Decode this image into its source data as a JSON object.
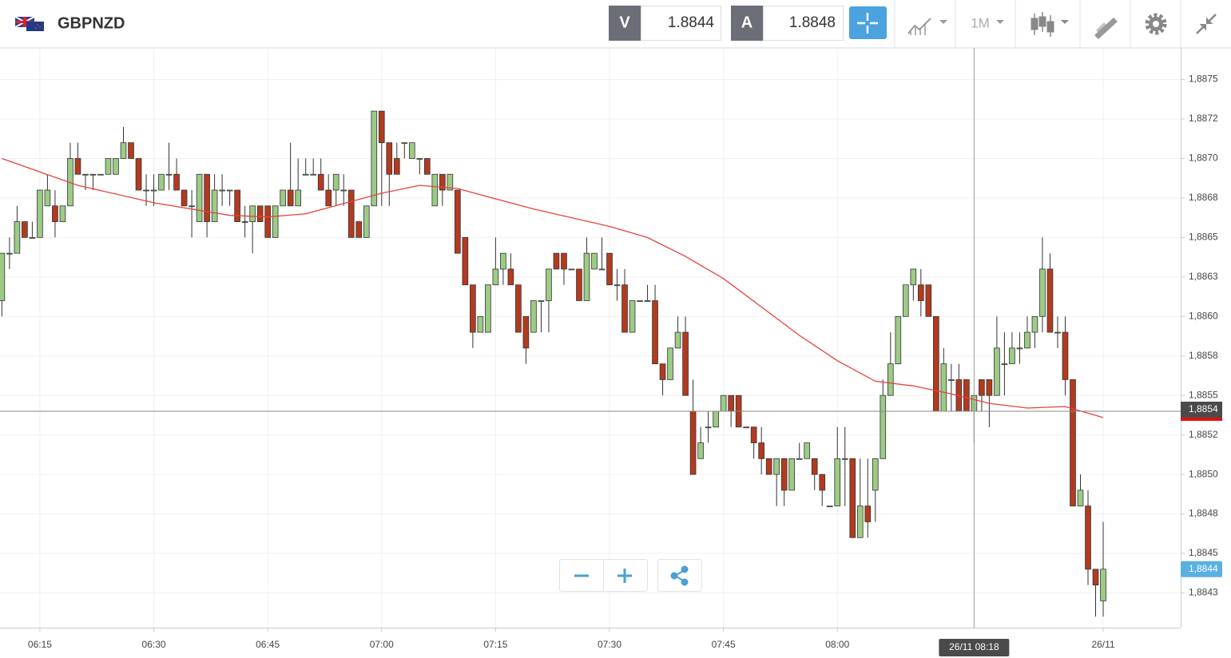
{
  "header": {
    "symbol": "GBPNZD",
    "sell_label": "V",
    "sell_price": "1.8844",
    "buy_label": "A",
    "buy_price": "1.8848",
    "timeframe": "1M"
  },
  "chart_data": {
    "type": "candlestick",
    "up_color": "#9ccb86",
    "down_color": "#b33a1f",
    "ma_color": "#e8413b",
    "grid": true,
    "xlim": [
      -0.25,
      155.2
    ],
    "ylim": [
      1.88403,
      1.8877
    ],
    "xticks": [
      {
        "value": 5,
        "label": "06:15"
      },
      {
        "value": 20,
        "label": "06:30"
      },
      {
        "value": 35,
        "label": "06:45"
      },
      {
        "value": 50,
        "label": "07:00"
      },
      {
        "value": 65,
        "label": "07:15"
      },
      {
        "value": 80,
        "label": "07:30"
      },
      {
        "value": 95,
        "label": "07:45"
      },
      {
        "value": 110,
        "label": "08:00"
      },
      {
        "value": 145,
        "label": "26/11"
      }
    ],
    "yticks": [
      {
        "value": 1.8875,
        "label": "1,8875"
      },
      {
        "value": 1.88725,
        "label": "1,8872"
      },
      {
        "value": 1.887,
        "label": "1,8870"
      },
      {
        "value": 1.88675,
        "label": "1,8868"
      },
      {
        "value": 1.8865,
        "label": "1,8865"
      },
      {
        "value": 1.88625,
        "label": "1,8863"
      },
      {
        "value": 1.886,
        "label": "1,8860"
      },
      {
        "value": 1.88575,
        "label": "1,8858"
      },
      {
        "value": 1.8855,
        "label": "1,8855"
      },
      {
        "value": 1.88525,
        "label": "1,8852"
      },
      {
        "value": 1.885,
        "label": "1,8850"
      },
      {
        "value": 1.88475,
        "label": "1,8848"
      },
      {
        "value": 1.8845,
        "label": "1,8845"
      },
      {
        "value": 1.88425,
        "label": "1,8843"
      }
    ],
    "candles": [
      [
        1.8861,
        1.8864,
        1.886,
        1.8864
      ],
      [
        1.8864,
        1.8865,
        1.8863,
        1.8864
      ],
      [
        1.8864,
        1.8867,
        1.8864,
        1.8866
      ],
      [
        1.8866,
        1.8866,
        1.8865,
        1.8865
      ],
      [
        1.8865,
        1.8866,
        1.8865,
        1.8865
      ],
      [
        1.8865,
        1.8868,
        1.8865,
        1.8868
      ],
      [
        1.8867,
        1.8869,
        1.8867,
        1.8868
      ],
      [
        1.8867,
        1.8868,
        1.8865,
        1.8866
      ],
      [
        1.8866,
        1.8867,
        1.8866,
        1.8867
      ],
      [
        1.8867,
        1.8871,
        1.8867,
        1.887
      ],
      [
        1.887,
        1.8871,
        1.8869,
        1.8869
      ],
      [
        1.8869,
        1.8869,
        1.8868,
        1.8869
      ],
      [
        1.8869,
        1.8869,
        1.8868,
        1.8869
      ],
      [
        1.8869,
        1.8869,
        1.8869,
        1.8869
      ],
      [
        1.8869,
        1.887,
        1.8869,
        1.887
      ],
      [
        1.8869,
        1.887,
        1.8869,
        1.887
      ],
      [
        1.887,
        1.8872,
        1.887,
        1.8871
      ],
      [
        1.8871,
        1.8871,
        1.887,
        1.887
      ],
      [
        1.887,
        1.887,
        1.8868,
        1.8868
      ],
      [
        1.8868,
        1.8869,
        1.8867,
        1.8868
      ],
      [
        1.8868,
        1.8869,
        1.8867,
        1.8868
      ],
      [
        1.8868,
        1.8869,
        1.8868,
        1.8869
      ],
      [
        1.8869,
        1.8871,
        1.8868,
        1.8869
      ],
      [
        1.8869,
        1.887,
        1.8868,
        1.8868
      ],
      [
        1.8868,
        1.8868,
        1.8867,
        1.8867
      ],
      [
        1.8867,
        1.8868,
        1.8865,
        1.8867
      ],
      [
        1.8866,
        1.8869,
        1.8866,
        1.8869
      ],
      [
        1.8869,
        1.8869,
        1.8865,
        1.8866
      ],
      [
        1.8866,
        1.8869,
        1.8866,
        1.8868
      ],
      [
        1.8868,
        1.8869,
        1.8867,
        1.8868
      ],
      [
        1.8868,
        1.8868,
        1.8867,
        1.8868
      ],
      [
        1.8868,
        1.8868,
        1.8866,
        1.8866
      ],
      [
        1.8866,
        1.8867,
        1.8865,
        1.8866
      ],
      [
        1.8866,
        1.8867,
        1.8864,
        1.8867
      ],
      [
        1.8867,
        1.8867,
        1.8866,
        1.8866
      ],
      [
        1.8867,
        1.8867,
        1.8865,
        1.8865
      ],
      [
        1.8865,
        1.8867,
        1.8865,
        1.8867
      ],
      [
        1.8867,
        1.8868,
        1.8867,
        1.8868
      ],
      [
        1.8868,
        1.8871,
        1.8867,
        1.8867
      ],
      [
        1.8867,
        1.887,
        1.8867,
        1.8868
      ],
      [
        1.8869,
        1.887,
        1.8869,
        1.8869
      ],
      [
        1.8869,
        1.887,
        1.8869,
        1.8869
      ],
      [
        1.8869,
        1.887,
        1.8868,
        1.8868
      ],
      [
        1.8868,
        1.8869,
        1.8867,
        1.8867
      ],
      [
        1.8868,
        1.8869,
        1.8867,
        1.8869
      ],
      [
        1.8868,
        1.8869,
        1.8867,
        1.8868
      ],
      [
        1.8868,
        1.8868,
        1.8865,
        1.8865
      ],
      [
        1.8866,
        1.8866,
        1.8865,
        1.8865
      ],
      [
        1.8865,
        1.8867,
        1.8865,
        1.8867
      ],
      [
        1.8867,
        1.8873,
        1.8867,
        1.8873
      ],
      [
        1.8873,
        1.8873,
        1.8867,
        1.8871
      ],
      [
        1.8871,
        1.8871,
        1.8867,
        1.8869
      ],
      [
        1.887,
        1.8871,
        1.8869,
        1.8869
      ],
      [
        1.8871,
        1.8871,
        1.887,
        1.8871
      ],
      [
        1.887,
        1.8871,
        1.887,
        1.8871
      ],
      [
        1.887,
        1.887,
        1.8869,
        1.887
      ],
      [
        1.887,
        1.887,
        1.8869,
        1.8869
      ],
      [
        1.8867,
        1.8869,
        1.8867,
        1.8869
      ],
      [
        1.8869,
        1.8869,
        1.8867,
        1.8868
      ],
      [
        1.8868,
        1.8869,
        1.8868,
        1.8869
      ],
      [
        1.8868,
        1.8868,
        1.8864,
        1.8864
      ],
      [
        1.8865,
        1.8865,
        1.8862,
        1.8862
      ],
      [
        1.8862,
        1.8862,
        1.8858,
        1.8859
      ],
      [
        1.8859,
        1.886,
        1.8859,
        1.886
      ],
      [
        1.8859,
        1.8862,
        1.8859,
        1.8862
      ],
      [
        1.8862,
        1.8865,
        1.8862,
        1.8863
      ],
      [
        1.8863,
        1.8864,
        1.8862,
        1.8864
      ],
      [
        1.8863,
        1.8864,
        1.8862,
        1.8862
      ],
      [
        1.8862,
        1.8862,
        1.8859,
        1.8859
      ],
      [
        1.886,
        1.886,
        1.8857,
        1.8858
      ],
      [
        1.8859,
        1.8861,
        1.8859,
        1.8861
      ],
      [
        1.8861,
        1.8861,
        1.8859,
        1.8861
      ],
      [
        1.8861,
        1.8863,
        1.8859,
        1.8863
      ],
      [
        1.8864,
        1.8864,
        1.8863,
        1.8863
      ],
      [
        1.8864,
        1.8864,
        1.8862,
        1.8863
      ],
      [
        1.8863,
        1.8863,
        1.8863,
        1.8863
      ],
      [
        1.8863,
        1.8863,
        1.8861,
        1.8861
      ],
      [
        1.8861,
        1.8865,
        1.8861,
        1.8864
      ],
      [
        1.8863,
        1.8864,
        1.8863,
        1.8864
      ],
      [
        1.8863,
        1.8865,
        1.8863,
        1.8863
      ],
      [
        1.8864,
        1.8864,
        1.8862,
        1.8862
      ],
      [
        1.8862,
        1.8863,
        1.8861,
        1.8862
      ],
      [
        1.8862,
        1.8863,
        1.8859,
        1.8859
      ],
      [
        1.8859,
        1.8861,
        1.8859,
        1.8861
      ],
      [
        1.8861,
        1.8861,
        1.8861,
        1.8861
      ],
      [
        1.8861,
        1.8862,
        1.8861,
        1.8861
      ],
      [
        1.8861,
        1.8862,
        1.8857,
        1.8857
      ],
      [
        1.8857,
        1.8857,
        1.8855,
        1.8856
      ],
      [
        1.8856,
        1.8858,
        1.8856,
        1.8858
      ],
      [
        1.8858,
        1.886,
        1.8858,
        1.8859
      ],
      [
        1.8859,
        1.886,
        1.8855,
        1.8855
      ],
      [
        1.8854,
        1.8856,
        1.885,
        1.885
      ],
      [
        1.8851,
        1.8853,
        1.8851,
        1.8852
      ],
      [
        1.8853,
        1.8854,
        1.8852,
        1.8853
      ],
      [
        1.8853,
        1.8854,
        1.8853,
        1.8854
      ],
      [
        1.8854,
        1.8855,
        1.8854,
        1.8855
      ],
      [
        1.8855,
        1.8855,
        1.8853,
        1.8854
      ],
      [
        1.8855,
        1.8855,
        1.8853,
        1.8853
      ],
      [
        1.8853,
        1.8853,
        1.8853,
        1.8853
      ],
      [
        1.8853,
        1.8853,
        1.8851,
        1.8852
      ],
      [
        1.8852,
        1.8853,
        1.885,
        1.8851
      ],
      [
        1.8851,
        1.8851,
        1.885,
        1.885
      ],
      [
        1.885,
        1.8851,
        1.8848,
        1.8851
      ],
      [
        1.8851,
        1.8851,
        1.8848,
        1.8849
      ],
      [
        1.8849,
        1.8851,
        1.8849,
        1.8851
      ],
      [
        1.8851,
        1.8852,
        1.8851,
        1.8851
      ],
      [
        1.8851,
        1.8852,
        1.8851,
        1.8852
      ],
      [
        1.8851,
        1.8851,
        1.8849,
        1.885
      ],
      [
        1.885,
        1.885,
        1.8848,
        1.8849
      ],
      [
        1.8848,
        1.8848,
        1.8848,
        1.8848
      ],
      [
        1.8848,
        1.8853,
        1.8848,
        1.8851
      ],
      [
        1.8851,
        1.8853,
        1.8848,
        1.8851
      ],
      [
        1.8851,
        1.8851,
        1.8846,
        1.8846
      ],
      [
        1.8846,
        1.8851,
        1.8846,
        1.8848
      ],
      [
        1.8848,
        1.8851,
        1.8846,
        1.8847
      ],
      [
        1.8849,
        1.8851,
        1.8847,
        1.8851
      ],
      [
        1.8851,
        1.8856,
        1.8851,
        1.8855
      ],
      [
        1.8855,
        1.8859,
        1.8855,
        1.8857
      ],
      [
        1.8857,
        1.886,
        1.8857,
        1.886
      ],
      [
        1.886,
        1.8862,
        1.886,
        1.8862
      ],
      [
        1.8862,
        1.8863,
        1.8861,
        1.8863
      ],
      [
        1.8862,
        1.8863,
        1.886,
        1.8861
      ],
      [
        1.8862,
        1.8862,
        1.886,
        1.886
      ],
      [
        1.886,
        1.886,
        1.8854,
        1.8854
      ],
      [
        1.8854,
        1.8858,
        1.8854,
        1.8857
      ],
      [
        1.8856,
        1.8857,
        1.8854,
        1.8856
      ],
      [
        1.8856,
        1.8857,
        1.8854,
        1.8854
      ],
      [
        1.8856,
        1.8856,
        1.8854,
        1.8854
      ],
      [
        1.8854,
        1.8855,
        1.8852,
        1.8855
      ],
      [
        1.8856,
        1.8856,
        1.8854,
        1.8855
      ],
      [
        1.8856,
        1.8856,
        1.8853,
        1.8855
      ],
      [
        1.8855,
        1.886,
        1.8855,
        1.8858
      ],
      [
        1.8857,
        1.8859,
        1.8855,
        1.8857
      ],
      [
        1.8857,
        1.8859,
        1.8857,
        1.8858
      ],
      [
        1.8858,
        1.8859,
        1.8857,
        1.8858
      ],
      [
        1.8858,
        1.886,
        1.8858,
        1.8859
      ],
      [
        1.8859,
        1.886,
        1.8858,
        1.886
      ],
      [
        1.886,
        1.8865,
        1.8859,
        1.8863
      ],
      [
        1.8863,
        1.8864,
        1.8859,
        1.8859
      ],
      [
        1.8859,
        1.886,
        1.8858,
        1.8859
      ],
      [
        1.8859,
        1.886,
        1.8855,
        1.8856
      ],
      [
        1.8856,
        1.8856,
        1.8848,
        1.8848
      ],
      [
        1.8848,
        1.885,
        1.8848,
        1.8849
      ],
      [
        1.8848,
        1.8849,
        1.8843,
        1.8844
      ],
      [
        1.8844,
        1.8844,
        1.8841,
        1.8843
      ],
      [
        1.8842,
        1.8847,
        1.8841,
        1.8844
      ]
    ],
    "ma": {
      "x": [
        0,
        10,
        20,
        30,
        35,
        40,
        50,
        55,
        60,
        70,
        80,
        85,
        90,
        95,
        100,
        105,
        110,
        115,
        120,
        125,
        130,
        135,
        140,
        145
      ],
      "values": [
        1.887,
        1.88683,
        1.88672,
        1.88664,
        1.88663,
        1.88665,
        1.88678,
        1.88683,
        1.88681,
        1.88668,
        1.88657,
        1.8865,
        1.88638,
        1.88624,
        1.88606,
        1.88588,
        1.88572,
        1.88559,
        1.88556,
        1.88551,
        1.88545,
        1.88542,
        1.88543,
        1.88536
      ]
    },
    "crosshair": {
      "x": 128,
      "x_label": "26/11 08:18",
      "y": 1.8854,
      "y_label": "1,8854"
    },
    "last_price": {
      "value": 1.8844,
      "label": "1,8844"
    }
  }
}
